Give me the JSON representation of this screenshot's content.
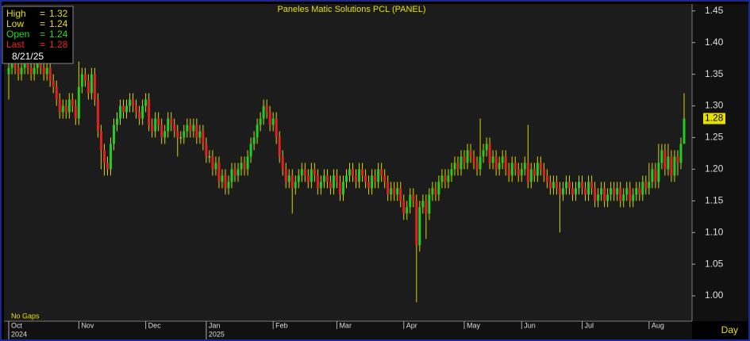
{
  "chart_data": {
    "type": "candlestick",
    "title": "Paneles Matic Solutions PCL (PANEL)",
    "open": [
      1.35,
      1.36,
      1.37,
      1.36,
      1.35,
      1.36,
      1.37,
      1.36,
      1.35,
      1.36,
      1.37,
      1.36,
      1.35,
      1.36,
      1.34,
      1.33,
      1.31,
      1.29,
      1.3,
      1.29,
      1.31,
      1.3,
      1.28,
      1.33,
      1.35,
      1.34,
      1.32,
      1.35,
      1.31,
      1.26,
      1.23,
      1.21,
      1.2,
      1.24,
      1.27,
      1.28,
      1.3,
      1.29,
      1.3,
      1.31,
      1.3,
      1.29,
      1.28,
      1.3,
      1.31,
      1.27,
      1.26,
      1.28,
      1.27,
      1.25,
      1.26,
      1.28,
      1.27,
      1.26,
      1.25,
      1.25,
      1.26,
      1.27,
      1.26,
      1.27,
      1.25,
      1.26,
      1.24,
      1.22,
      1.22,
      1.2,
      1.21,
      1.18,
      1.19,
      1.17,
      1.18,
      1.2,
      1.19,
      1.2,
      1.21,
      1.2,
      1.22,
      1.24,
      1.25,
      1.27,
      1.28,
      1.3,
      1.29,
      1.27,
      1.28,
      1.25,
      1.22,
      1.2,
      1.18,
      1.19,
      1.17,
      1.18,
      1.19,
      1.2,
      1.19,
      1.18,
      1.2,
      1.19,
      1.17,
      1.18,
      1.19,
      1.18,
      1.17,
      1.19,
      1.18,
      1.16,
      1.18,
      1.19,
      1.2,
      1.19,
      1.18,
      1.2,
      1.19,
      1.18,
      1.17,
      1.19,
      1.18,
      1.2,
      1.19,
      1.18,
      1.16,
      1.17,
      1.16,
      1.17,
      1.15,
      1.13,
      1.14,
      1.16,
      1.15,
      1.08,
      1.14,
      1.15,
      1.13,
      1.16,
      1.17,
      1.16,
      1.18,
      1.19,
      1.18,
      1.19,
      1.2,
      1.21,
      1.2,
      1.22,
      1.21,
      1.23,
      1.22,
      1.21,
      1.2,
      1.22,
      1.23,
      1.24,
      1.21,
      1.22,
      1.2,
      1.21,
      1.22,
      1.2,
      1.19,
      1.21,
      1.2,
      1.19,
      1.2,
      1.21,
      1.18,
      1.2,
      1.19,
      1.21,
      1.2,
      1.19,
      1.18,
      1.17,
      1.18,
      1.17,
      1.16,
      1.17,
      1.18,
      1.17,
      1.16,
      1.17,
      1.18,
      1.17,
      1.16,
      1.18,
      1.17,
      1.15,
      1.16,
      1.17,
      1.15,
      1.16,
      1.17,
      1.16,
      1.17,
      1.15,
      1.16,
      1.17,
      1.15,
      1.16,
      1.17,
      1.16,
      1.18,
      1.17,
      1.18,
      1.2,
      1.18,
      1.21,
      1.23,
      1.2,
      1.22,
      1.19,
      1.22,
      1.21,
      1.24
    ],
    "high": [
      1.38,
      1.38,
      1.38,
      1.37,
      1.37,
      1.38,
      1.38,
      1.37,
      1.37,
      1.38,
      1.38,
      1.37,
      1.37,
      1.37,
      1.35,
      1.34,
      1.32,
      1.31,
      1.31,
      1.32,
      1.32,
      1.31,
      1.37,
      1.36,
      1.36,
      1.35,
      1.36,
      1.36,
      1.32,
      1.27,
      1.24,
      1.22,
      1.25,
      1.28,
      1.29,
      1.31,
      1.31,
      1.31,
      1.32,
      1.32,
      1.31,
      1.3,
      1.31,
      1.32,
      1.32,
      1.28,
      1.29,
      1.29,
      1.28,
      1.27,
      1.29,
      1.29,
      1.28,
      1.27,
      1.26,
      1.27,
      1.28,
      1.28,
      1.28,
      1.28,
      1.27,
      1.27,
      1.25,
      1.23,
      1.23,
      1.22,
      1.22,
      1.2,
      1.2,
      1.19,
      1.21,
      1.21,
      1.21,
      1.22,
      1.22,
      1.23,
      1.25,
      1.26,
      1.28,
      1.29,
      1.31,
      1.31,
      1.3,
      1.29,
      1.29,
      1.26,
      1.23,
      1.21,
      1.2,
      1.2,
      1.19,
      1.2,
      1.21,
      1.21,
      1.2,
      1.21,
      1.21,
      1.2,
      1.19,
      1.2,
      1.2,
      1.19,
      1.2,
      1.2,
      1.19,
      1.19,
      1.2,
      1.21,
      1.21,
      1.2,
      1.21,
      1.21,
      1.2,
      1.19,
      1.2,
      1.2,
      1.21,
      1.21,
      1.2,
      1.19,
      1.18,
      1.18,
      1.18,
      1.18,
      1.16,
      1.15,
      1.17,
      1.17,
      1.16,
      1.15,
      1.16,
      1.16,
      1.17,
      1.18,
      1.18,
      1.19,
      1.2,
      1.2,
      1.2,
      1.21,
      1.22,
      1.22,
      1.23,
      1.23,
      1.24,
      1.24,
      1.23,
      1.22,
      1.28,
      1.24,
      1.25,
      1.25,
      1.23,
      1.23,
      1.22,
      1.23,
      1.23,
      1.21,
      1.22,
      1.22,
      1.21,
      1.21,
      1.22,
      1.27,
      1.21,
      1.21,
      1.22,
      1.22,
      1.21,
      1.2,
      1.19,
      1.19,
      1.19,
      1.18,
      1.18,
      1.19,
      1.19,
      1.18,
      1.18,
      1.19,
      1.19,
      1.18,
      1.19,
      1.19,
      1.18,
      1.17,
      1.18,
      1.18,
      1.17,
      1.18,
      1.18,
      1.18,
      1.18,
      1.17,
      1.18,
      1.18,
      1.17,
      1.18,
      1.18,
      1.19,
      1.19,
      1.21,
      1.21,
      1.21,
      1.24,
      1.24,
      1.24,
      1.24,
      1.23,
      1.23,
      1.23,
      1.25,
      1.32
    ],
    "low": [
      1.31,
      1.35,
      1.35,
      1.34,
      1.34,
      1.35,
      1.35,
      1.34,
      1.34,
      1.35,
      1.35,
      1.34,
      1.34,
      1.33,
      1.32,
      1.3,
      1.28,
      1.28,
      1.28,
      1.28,
      1.29,
      1.27,
      1.27,
      1.32,
      1.33,
      1.31,
      1.31,
      1.3,
      1.25,
      1.2,
      1.19,
      1.19,
      1.19,
      1.23,
      1.26,
      1.27,
      1.28,
      1.28,
      1.29,
      1.29,
      1.28,
      1.27,
      1.27,
      1.29,
      1.26,
      1.25,
      1.25,
      1.26,
      1.24,
      1.24,
      1.25,
      1.26,
      1.25,
      1.22,
      1.24,
      1.24,
      1.25,
      1.25,
      1.25,
      1.24,
      1.24,
      1.23,
      1.21,
      1.21,
      1.19,
      1.19,
      1.17,
      1.17,
      1.16,
      1.16,
      1.17,
      1.18,
      1.18,
      1.19,
      1.19,
      1.19,
      1.21,
      1.23,
      1.24,
      1.26,
      1.27,
      1.28,
      1.26,
      1.26,
      1.24,
      1.21,
      1.19,
      1.17,
      1.17,
      1.13,
      1.16,
      1.17,
      1.18,
      1.18,
      1.17,
      1.17,
      1.18,
      1.16,
      1.16,
      1.17,
      1.17,
      1.16,
      1.16,
      1.17,
      1.15,
      1.15,
      1.17,
      1.18,
      1.18,
      1.17,
      1.17,
      1.18,
      1.17,
      1.16,
      1.16,
      1.17,
      1.17,
      1.18,
      1.17,
      1.15,
      1.15,
      1.15,
      1.15,
      1.14,
      1.12,
      1.12,
      1.13,
      1.14,
      0.99,
      1.07,
      1.13,
      1.09,
      1.12,
      1.15,
      1.15,
      1.15,
      1.17,
      1.17,
      1.17,
      1.18,
      1.19,
      1.19,
      1.19,
      1.2,
      1.2,
      1.21,
      1.2,
      1.19,
      1.19,
      1.21,
      1.22,
      1.2,
      1.2,
      1.19,
      1.19,
      1.2,
      1.19,
      1.18,
      1.18,
      1.19,
      1.18,
      1.18,
      1.19,
      1.17,
      1.17,
      1.18,
      1.18,
      1.19,
      1.18,
      1.17,
      1.16,
      1.16,
      1.16,
      1.1,
      1.15,
      1.16,
      1.16,
      1.15,
      1.15,
      1.16,
      1.16,
      1.15,
      1.15,
      1.16,
      1.14,
      1.14,
      1.15,
      1.14,
      1.14,
      1.15,
      1.15,
      1.15,
      1.14,
      1.14,
      1.15,
      1.14,
      1.14,
      1.15,
      1.15,
      1.15,
      1.16,
      1.16,
      1.17,
      1.17,
      1.17,
      1.2,
      1.19,
      1.19,
      1.18,
      1.18,
      1.19,
      1.2,
      1.24
    ],
    "close": [
      1.36,
      1.37,
      1.36,
      1.35,
      1.36,
      1.37,
      1.36,
      1.35,
      1.36,
      1.37,
      1.36,
      1.35,
      1.36,
      1.34,
      1.33,
      1.31,
      1.29,
      1.3,
      1.29,
      1.31,
      1.3,
      1.28,
      1.33,
      1.35,
      1.34,
      1.32,
      1.35,
      1.31,
      1.26,
      1.23,
      1.21,
      1.2,
      1.24,
      1.27,
      1.28,
      1.3,
      1.29,
      1.3,
      1.31,
      1.3,
      1.29,
      1.28,
      1.3,
      1.31,
      1.27,
      1.26,
      1.28,
      1.27,
      1.25,
      1.26,
      1.28,
      1.27,
      1.26,
      1.25,
      1.25,
      1.26,
      1.27,
      1.26,
      1.27,
      1.25,
      1.26,
      1.24,
      1.22,
      1.22,
      1.2,
      1.21,
      1.18,
      1.19,
      1.17,
      1.18,
      1.2,
      1.19,
      1.2,
      1.21,
      1.2,
      1.22,
      1.24,
      1.25,
      1.27,
      1.28,
      1.3,
      1.29,
      1.27,
      1.28,
      1.25,
      1.22,
      1.2,
      1.18,
      1.19,
      1.17,
      1.18,
      1.19,
      1.2,
      1.19,
      1.18,
      1.2,
      1.19,
      1.17,
      1.18,
      1.19,
      1.18,
      1.17,
      1.19,
      1.18,
      1.16,
      1.18,
      1.19,
      1.2,
      1.19,
      1.18,
      1.2,
      1.19,
      1.18,
      1.17,
      1.19,
      1.18,
      1.2,
      1.19,
      1.18,
      1.16,
      1.17,
      1.16,
      1.17,
      1.15,
      1.13,
      1.14,
      1.16,
      1.15,
      1.08,
      1.14,
      1.15,
      1.13,
      1.16,
      1.17,
      1.16,
      1.18,
      1.19,
      1.18,
      1.19,
      1.2,
      1.21,
      1.2,
      1.22,
      1.21,
      1.23,
      1.22,
      1.21,
      1.2,
      1.22,
      1.23,
      1.24,
      1.21,
      1.22,
      1.2,
      1.21,
      1.22,
      1.2,
      1.19,
      1.21,
      1.2,
      1.19,
      1.2,
      1.21,
      1.18,
      1.2,
      1.19,
      1.21,
      1.2,
      1.19,
      1.18,
      1.17,
      1.18,
      1.17,
      1.16,
      1.17,
      1.18,
      1.17,
      1.16,
      1.17,
      1.18,
      1.17,
      1.16,
      1.18,
      1.17,
      1.15,
      1.16,
      1.17,
      1.15,
      1.16,
      1.17,
      1.16,
      1.17,
      1.15,
      1.16,
      1.17,
      1.15,
      1.16,
      1.17,
      1.16,
      1.18,
      1.17,
      1.18,
      1.2,
      1.18,
      1.21,
      1.23,
      1.2,
      1.22,
      1.19,
      1.22,
      1.21,
      1.24,
      1.28
    ],
    "up_color": "#22cc22",
    "down_color": "#e02222",
    "wick_color": "#d8d400",
    "ylim": [
      0.96,
      1.461
    ],
    "yticks": [
      {
        "value": 1.0,
        "label": "1.00"
      },
      1.05,
      {
        "value": 1.1,
        "label": "1.10"
      },
      1.15,
      {
        "value": 1.2,
        "label": "1.20"
      },
      1.25,
      {
        "value": 1.3,
        "label": "1.30"
      },
      1.35,
      {
        "value": 1.4,
        "label": "1.40"
      },
      1.45
    ],
    "xlim": [
      -1.5,
      214.5
    ],
    "xticks": [
      {
        "value": 0,
        "label": "Oct"
      },
      {
        "value": 22,
        "label": "Nov"
      },
      {
        "value": 43,
        "label": "Dec"
      },
      {
        "value": 62,
        "label": "Jan"
      },
      {
        "value": 83,
        "label": "Feb"
      },
      {
        "value": 103,
        "label": "Mar"
      },
      {
        "value": 124,
        "label": "Apr"
      },
      {
        "value": 143,
        "label": "May"
      },
      {
        "value": 161,
        "label": "Jun"
      },
      {
        "value": 180,
        "label": "Jul"
      },
      {
        "value": 201,
        "label": "Aug"
      }
    ],
    "year_ticks": [
      {
        "value": 0,
        "label": "2024"
      },
      {
        "value": 62,
        "label": "2025"
      }
    ],
    "readout": [
      {
        "label": "High",
        "sign": "=",
        "value": 1.32,
        "color": "#e8e000"
      },
      {
        "label": "Low",
        "sign": "=",
        "value": 1.24,
        "color": "#e8e000"
      },
      {
        "label": "Open",
        "sign": "=",
        "value": 1.24,
        "color": "#22dd22"
      },
      {
        "label": "Last",
        "sign": "=",
        "value": 1.28,
        "color": "#ee2222"
      }
    ],
    "readout_date": "8/21/25",
    "gap_mode": "No Gaps",
    "periodicity": "Day"
  }
}
